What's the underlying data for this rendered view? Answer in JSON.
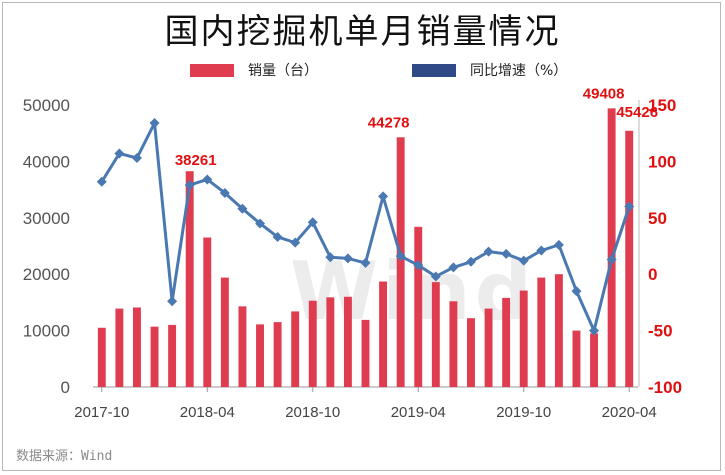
{
  "title": "国内挖掘机单月销量情况",
  "legend": {
    "bar_label": "销量（台）",
    "line_label": "同比增速（%）"
  },
  "source": "数据来源：Wind",
  "watermark": "Wind",
  "colors": {
    "bar": "#e03c50",
    "line": "#4a78b0",
    "left_axis_text": "#555555",
    "right_axis_text": "#e01010",
    "label": "#e01010",
    "legend_line": "#2f4a86"
  },
  "chart_data": {
    "type": "bar",
    "title": "国内挖掘机单月销量情况",
    "x_tick_labels": [
      "2017-10",
      "2018-04",
      "2018-10",
      "2019-04",
      "2019-10",
      "2020-04"
    ],
    "categories": [
      "2017-10",
      "2017-11",
      "2017-12",
      "2018-01",
      "2018-02",
      "2018-03",
      "2018-04",
      "2018-05",
      "2018-06",
      "2018-07",
      "2018-08",
      "2018-09",
      "2018-10",
      "2018-11",
      "2018-12",
      "2019-01",
      "2019-02",
      "2019-03",
      "2019-04",
      "2019-05",
      "2019-06",
      "2019-07",
      "2019-08",
      "2019-09",
      "2019-10",
      "2019-11",
      "2019-12",
      "2020-01",
      "2020-02",
      "2020-03",
      "2020-04"
    ],
    "series": [
      {
        "name": "销量（台）",
        "type": "bar",
        "axis": "left",
        "values": [
          10500,
          13900,
          14100,
          10700,
          11000,
          38261,
          26500,
          19400,
          14300,
          11100,
          11500,
          13400,
          15300,
          15900,
          16000,
          11900,
          18700,
          44278,
          28400,
          18600,
          15200,
          12200,
          13900,
          15800,
          17100,
          19400,
          20000,
          10000,
          9500,
          49408,
          45426
        ]
      },
      {
        "name": "同比增速（%）",
        "type": "line",
        "axis": "right",
        "values": [
          82,
          107,
          103,
          134,
          -24,
          79,
          84,
          72,
          58,
          45,
          33,
          28,
          46,
          15,
          14,
          10,
          69,
          16,
          8,
          -2,
          6,
          11,
          20,
          18,
          12,
          21,
          26,
          -15,
          -50,
          13,
          60
        ]
      }
    ],
    "data_labels": [
      {
        "index": 5,
        "text": "38261"
      },
      {
        "index": 17,
        "text": "44278"
      },
      {
        "index": 29,
        "text": "49408"
      },
      {
        "index": 30,
        "text": "45426"
      }
    ],
    "left_axis": {
      "ylim": [
        0,
        50000
      ],
      "ticks": [
        0,
        10000,
        20000,
        30000,
        40000,
        50000
      ]
    },
    "right_axis": {
      "ylim": [
        -100,
        150
      ],
      "ticks": [
        -100,
        -50,
        0,
        50,
        100,
        150
      ]
    },
    "grid": false,
    "legend_position": "top"
  }
}
